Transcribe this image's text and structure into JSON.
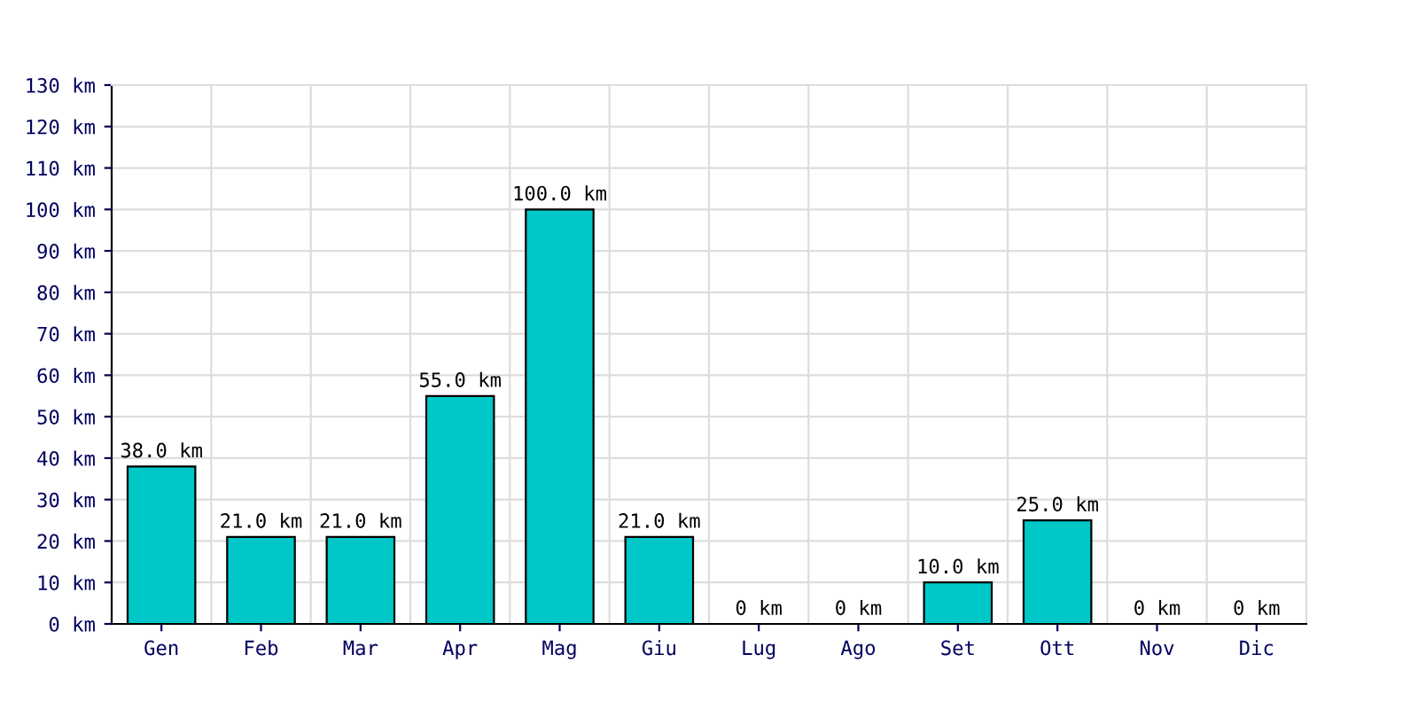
{
  "chart_data": {
    "type": "bar",
    "categories": [
      "Gen",
      "Feb",
      "Mar",
      "Apr",
      "Mag",
      "Giu",
      "Lug",
      "Ago",
      "Set",
      "Ott",
      "Nov",
      "Dic"
    ],
    "values": [
      38,
      21,
      21,
      55,
      100,
      21,
      0,
      0,
      10,
      25,
      0,
      0
    ],
    "value_labels": [
      "38.0 km",
      "21.0 km",
      "21.0 km",
      "55.0 km",
      "100.0 km",
      "21.0 km",
      "0 km",
      "0 km",
      "10.0 km",
      "25.0 km",
      "0 km",
      "0 km"
    ],
    "color": "#00c8c8",
    "ylim": [
      0,
      130
    ],
    "yticks": [
      {
        "value": 0,
        "label": "0 km"
      },
      {
        "value": 10,
        "label": "10 km"
      },
      {
        "value": 20,
        "label": "20 km"
      },
      {
        "value": 30,
        "label": "30 km"
      },
      {
        "value": 40,
        "label": "40 km"
      },
      {
        "value": 50,
        "label": "50 km"
      },
      {
        "value": 60,
        "label": "60 km"
      },
      {
        "value": 70,
        "label": "70 km"
      },
      {
        "value": 80,
        "label": "80 km"
      },
      {
        "value": 90,
        "label": "90 km"
      },
      {
        "value": 100,
        "label": "100 km"
      },
      {
        "value": 110,
        "label": "110 km"
      },
      {
        "value": 120,
        "label": "120 km"
      },
      {
        "value": 130,
        "label": "130 km"
      }
    ],
    "grid": true
  }
}
